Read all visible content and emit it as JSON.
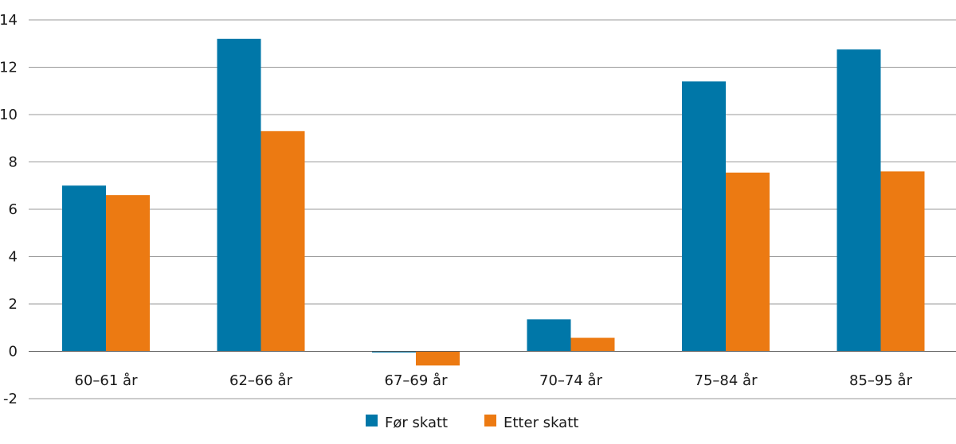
{
  "chart_data": {
    "type": "bar",
    "categories": [
      "60–61 år",
      "62–66 år",
      "67–69 år",
      "70–74 år",
      "75–84 år",
      "85–95 år"
    ],
    "series": [
      {
        "name": "Før skatt",
        "values": [
          7.0,
          13.2,
          -0.05,
          1.35,
          11.4,
          12.75
        ],
        "color": "#0077a8"
      },
      {
        "name": "Etter skatt",
        "values": [
          6.6,
          9.3,
          -0.6,
          0.57,
          7.55,
          7.6
        ],
        "color": "#ec7a12"
      }
    ],
    "ylim": [
      -2,
      14
    ],
    "yticks": [
      -2,
      0,
      2,
      4,
      6,
      8,
      10,
      12,
      14
    ],
    "grid": true,
    "legend_placement": "bottom-center"
  }
}
